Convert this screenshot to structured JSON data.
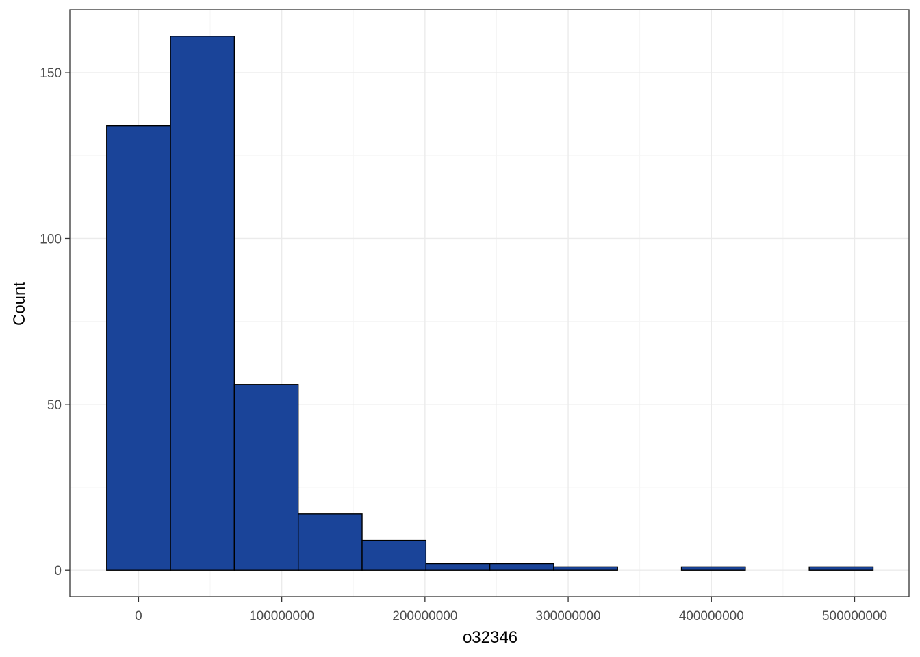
{
  "chart_data": {
    "type": "bar",
    "subtype": "histogram",
    "title": "",
    "xlabel": "o32346",
    "ylabel": "Count",
    "bin_width": 44600000,
    "bins": [
      {
        "x_start": -22300000,
        "x_end": 22300000,
        "count": 134
      },
      {
        "x_start": 22300000,
        "x_end": 66900000,
        "count": 161
      },
      {
        "x_start": 66900000,
        "x_end": 111500000,
        "count": 56
      },
      {
        "x_start": 111500000,
        "x_end": 156100000,
        "count": 17
      },
      {
        "x_start": 156100000,
        "x_end": 200700000,
        "count": 9
      },
      {
        "x_start": 200700000,
        "x_end": 245300000,
        "count": 2
      },
      {
        "x_start": 245300000,
        "x_end": 289900000,
        "count": 2
      },
      {
        "x_start": 289900000,
        "x_end": 334500000,
        "count": 1
      },
      {
        "x_start": 334500000,
        "x_end": 379100000,
        "count": 0
      },
      {
        "x_start": 379100000,
        "x_end": 423700000,
        "count": 1
      },
      {
        "x_start": 423700000,
        "x_end": 468300000,
        "count": 0
      },
      {
        "x_start": 468300000,
        "x_end": 512900000,
        "count": 1
      }
    ],
    "xlim": [
      -48000000,
      538000000
    ],
    "ylim": [
      -8,
      169
    ],
    "x_ticks": [
      0,
      100000000,
      200000000,
      300000000,
      400000000,
      500000000
    ],
    "x_tick_labels": [
      "0",
      "100000000",
      "200000000",
      "300000000",
      "400000000",
      "500000000"
    ],
    "y_ticks": [
      0,
      50,
      100,
      150
    ],
    "y_tick_labels": [
      "0",
      "50",
      "100",
      "150"
    ],
    "grid": true,
    "legend": "none",
    "colors": {
      "bar_fill": "#1A4499",
      "bar_stroke": "#000000",
      "grid_major": "#EBEBEB",
      "grid_minor": "#F5F5F5",
      "panel_border": "#333333",
      "tick_label": "#4D4D4D",
      "axis_title": "#000000"
    }
  }
}
